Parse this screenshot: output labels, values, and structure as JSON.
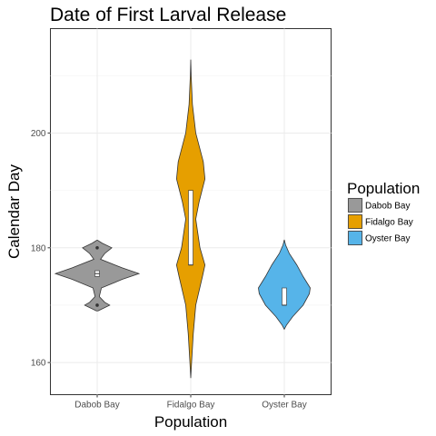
{
  "chart_data": {
    "type": "violin",
    "title": "Date of First Larval Release",
    "xlabel": "Population",
    "ylabel": "Calendar Day",
    "categories": [
      "Dabob Bay",
      "Fidalgo Bay",
      "Oyster Bay"
    ],
    "ylim": [
      154.4,
      218.2
    ],
    "yticks": [
      160,
      180,
      200
    ],
    "grid": true,
    "legend": {
      "title": "Population",
      "position": "right",
      "entries": [
        "Dabob Bay",
        "Fidalgo Bay",
        "Oyster Bay"
      ]
    },
    "series": [
      {
        "name": "Dabob Bay",
        "color": "#999999",
        "violin": [
          [
            169,
            0.02
          ],
          [
            170,
            0.3
          ],
          [
            170.5,
            0.18
          ],
          [
            171.5,
            0.05
          ],
          [
            173,
            0.1
          ],
          [
            174.5,
            0.6
          ],
          [
            175.5,
            1.0
          ],
          [
            176.5,
            0.6
          ],
          [
            178,
            0.08
          ],
          [
            179,
            0.18
          ],
          [
            180,
            0.35
          ],
          [
            180.8,
            0.12
          ],
          [
            181.3,
            0.01
          ]
        ],
        "box": {
          "q1": 175,
          "median": 175.5,
          "q3": 176
        },
        "outliers": [
          170,
          180
        ]
      },
      {
        "name": "Fidalgo Bay",
        "color": "#E69F00",
        "violin": [
          [
            157.3,
            0.0
          ],
          [
            160,
            0.02
          ],
          [
            165,
            0.06
          ],
          [
            170,
            0.12
          ],
          [
            175,
            0.28
          ],
          [
            177,
            0.34
          ],
          [
            180,
            0.22
          ],
          [
            185,
            0.12
          ],
          [
            188,
            0.2
          ],
          [
            192,
            0.34
          ],
          [
            195,
            0.3
          ],
          [
            200,
            0.12
          ],
          [
            205,
            0.04
          ],
          [
            210,
            0.01
          ],
          [
            212.8,
            0.0
          ]
        ],
        "box": {
          "q1": 177,
          "median": 177,
          "q3": 190
        },
        "outliers": []
      },
      {
        "name": "Oyster Bay",
        "color": "#56B4E9",
        "violin": [
          [
            165.8,
            0.0
          ],
          [
            166.5,
            0.05
          ],
          [
            168,
            0.2
          ],
          [
            170,
            0.45
          ],
          [
            172,
            0.6
          ],
          [
            173,
            0.62
          ],
          [
            175,
            0.45
          ],
          [
            177,
            0.3
          ],
          [
            179,
            0.12
          ],
          [
            180.5,
            0.03
          ],
          [
            181.4,
            0.0
          ]
        ],
        "box": {
          "q1": 170,
          "median": 170,
          "q3": 173
        },
        "outliers": []
      }
    ]
  }
}
